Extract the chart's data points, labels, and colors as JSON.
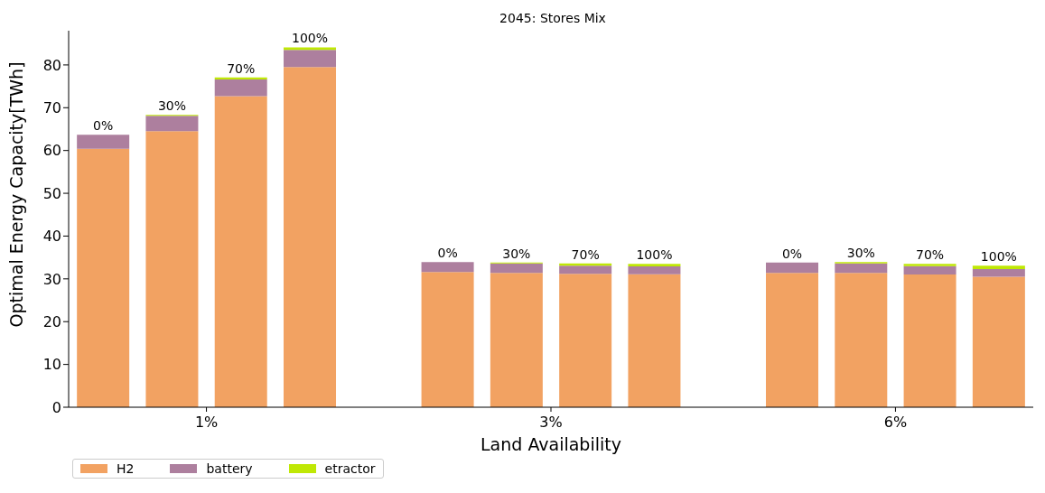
{
  "chart_data": {
    "type": "bar",
    "title": "2045: Stores Mix",
    "xlabel": "Land Availability",
    "ylabel": "Optimal Energy Capacity[TWh]",
    "categories": [
      "0%",
      "30%",
      "70%",
      "100%",
      null,
      "0%",
      "30%",
      "70%",
      "100%",
      null,
      "0%",
      "30%",
      "70%",
      "100%"
    ],
    "annotations": [
      "1%",
      "3%",
      "6%"
    ],
    "stacked": true,
    "legend": "bottom left",
    "ylim": [
      0,
      88
    ],
    "yticks": [
      0,
      10,
      20,
      30,
      40,
      50,
      60,
      70,
      80
    ],
    "series": [
      {
        "name": "H2",
        "color": "#f2a262",
        "values": [
          60.4,
          64.5,
          72.7,
          79.5,
          null,
          31.6,
          31.4,
          31.2,
          31.1,
          null,
          31.4,
          31.4,
          31.0,
          30.5
        ]
      },
      {
        "name": "battery",
        "color": "#ad7f9e",
        "values": [
          3.3,
          3.6,
          3.9,
          4.0,
          null,
          2.3,
          2.2,
          1.9,
          1.8,
          null,
          2.4,
          2.2,
          2.0,
          1.8
        ]
      },
      {
        "name": "etractor",
        "color": "#bfe805",
        "values": [
          0,
          0.2,
          0.5,
          0.6,
          null,
          0,
          0.2,
          0.5,
          0.6,
          null,
          0,
          0.3,
          0.5,
          0.8
        ]
      }
    ]
  }
}
